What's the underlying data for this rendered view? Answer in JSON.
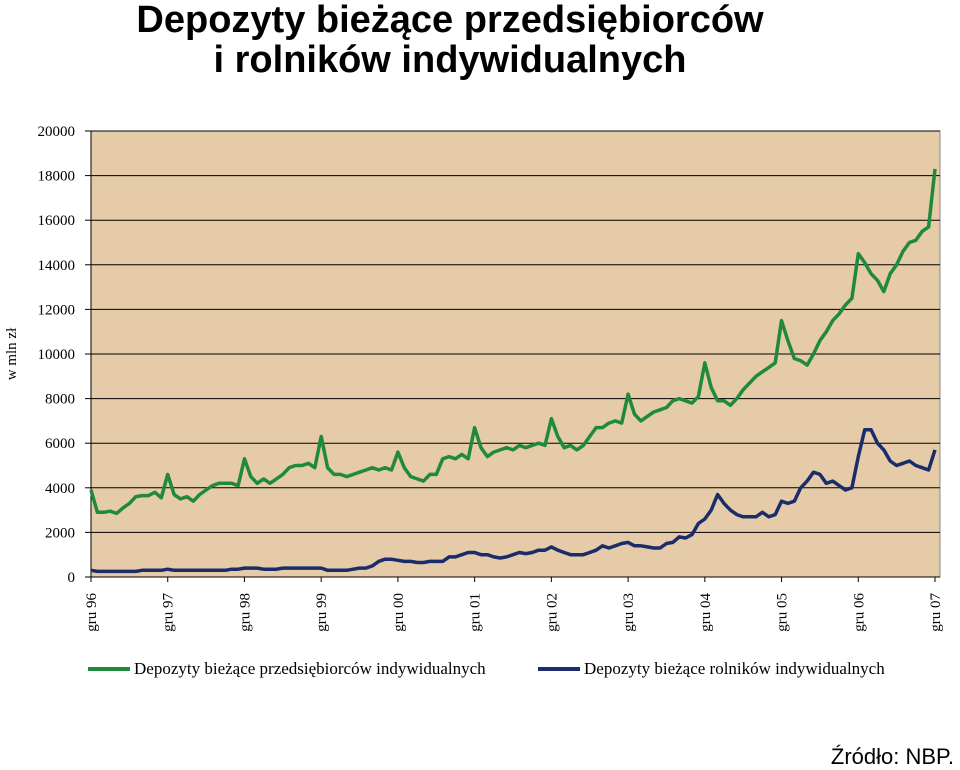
{
  "chart_data": {
    "type": "line",
    "title": "Depozyty bieżące przedsiębiorców\ni rolników indywidualnych",
    "y_label": "w mln zł",
    "source": "Źródło: NBP.",
    "categories": [
      "gru 96",
      null,
      null,
      null,
      null,
      null,
      null,
      null,
      null,
      null,
      null,
      null,
      "gru 97",
      null,
      null,
      null,
      null,
      null,
      null,
      null,
      null,
      null,
      null,
      null,
      "gru 98",
      null,
      null,
      null,
      null,
      null,
      null,
      null,
      null,
      null,
      null,
      null,
      "gru 99",
      null,
      null,
      null,
      null,
      null,
      null,
      null,
      null,
      null,
      null,
      null,
      "gru 00",
      null,
      null,
      null,
      null,
      null,
      null,
      null,
      null,
      null,
      null,
      null,
      "gru 01",
      null,
      null,
      null,
      null,
      null,
      null,
      null,
      null,
      null,
      null,
      null,
      "gru 02",
      null,
      null,
      null,
      null,
      null,
      null,
      null,
      null,
      null,
      null,
      null,
      "gru 03",
      null,
      null,
      null,
      null,
      null,
      null,
      null,
      null,
      null,
      null,
      null,
      "gru 04",
      null,
      null,
      null,
      null,
      null,
      null,
      null,
      null,
      null,
      null,
      null,
      "gru 05",
      null,
      null,
      null,
      null,
      null,
      null,
      null,
      null,
      null,
      null,
      null,
      "gru 06",
      null,
      null,
      null,
      null,
      null,
      null,
      null,
      null,
      null,
      null,
      null,
      "gru 07"
    ],
    "series": [
      {
        "name": "Depozyty bieżące przedsiębiorców indywidualnych",
        "color": "#1f8a3b",
        "values": [
          3900,
          2900,
          2900,
          2950,
          2850,
          3100,
          3300,
          3600,
          3650,
          3650,
          3800,
          3550,
          4600,
          3700,
          3500,
          3600,
          3400,
          3700,
          3900,
          4100,
          4200,
          4200,
          4200,
          4100,
          5300,
          4500,
          4200,
          4400,
          4200,
          4400,
          4600,
          4900,
          5000,
          5000,
          5100,
          4900,
          6300,
          4900,
          4600,
          4600,
          4500,
          4600,
          4700,
          4800,
          4900,
          4800,
          4900,
          4800,
          5600,
          4900,
          4500,
          4400,
          4300,
          4600,
          4600,
          5300,
          5400,
          5300,
          5500,
          5300,
          6700,
          5800,
          5400,
          5600,
          5700,
          5800,
          5700,
          5900,
          5800,
          5900,
          6000,
          5900,
          7100,
          6300,
          5800,
          5900,
          5700,
          5900,
          6300,
          6700,
          6700,
          6900,
          7000,
          6900,
          8200,
          7300,
          7000,
          7200,
          7400,
          7500,
          7600,
          7900,
          8000,
          7900,
          7800,
          8100,
          9600,
          8500,
          7900,
          7900,
          7700,
          8000,
          8400,
          8700,
          9000,
          9200,
          9400,
          9600,
          11500,
          10600,
          9800,
          9700,
          9500,
          10000,
          10600,
          11000,
          11500,
          11800,
          12200,
          12500,
          14500,
          14100,
          13600,
          13300,
          12800,
          13600,
          14000,
          14600,
          15000,
          15100,
          15500,
          15700,
          18300
        ]
      },
      {
        "name": "Depozyty bieżące rolników indywidualnych",
        "color": "#1b2c6b",
        "values": [
          300,
          250,
          250,
          250,
          250,
          250,
          250,
          250,
          300,
          300,
          300,
          300,
          350,
          300,
          300,
          300,
          300,
          300,
          300,
          300,
          300,
          300,
          350,
          350,
          400,
          400,
          400,
          350,
          350,
          350,
          400,
          400,
          400,
          400,
          400,
          400,
          400,
          300,
          300,
          300,
          300,
          350,
          400,
          400,
          500,
          700,
          800,
          800,
          750,
          700,
          700,
          650,
          650,
          700,
          700,
          700,
          900,
          900,
          1000,
          1100,
          1100,
          1000,
          1000,
          900,
          850,
          900,
          1000,
          1100,
          1050,
          1100,
          1200,
          1200,
          1350,
          1200,
          1100,
          1000,
          1000,
          1000,
          1100,
          1200,
          1400,
          1300,
          1400,
          1500,
          1550,
          1400,
          1400,
          1350,
          1300,
          1300,
          1500,
          1550,
          1800,
          1750,
          1900,
          2400,
          2600,
          3000,
          3700,
          3300,
          3000,
          2800,
          2700,
          2700,
          2700,
          2900,
          2700,
          2800,
          3400,
          3300,
          3400,
          4000,
          4300,
          4700,
          4600,
          4200,
          4300,
          4100,
          3900,
          4000,
          5400,
          6600,
          6600,
          6000,
          5700,
          5200,
          5000,
          5100,
          5200,
          5000,
          4900,
          4800,
          5700
        ]
      }
    ],
    "ylim": [
      0,
      20000
    ],
    "yticks": [
      0,
      2000,
      4000,
      6000,
      8000,
      10000,
      12000,
      14000,
      16000,
      18000,
      20000
    ],
    "grid": true,
    "background": "#e6cba9"
  }
}
